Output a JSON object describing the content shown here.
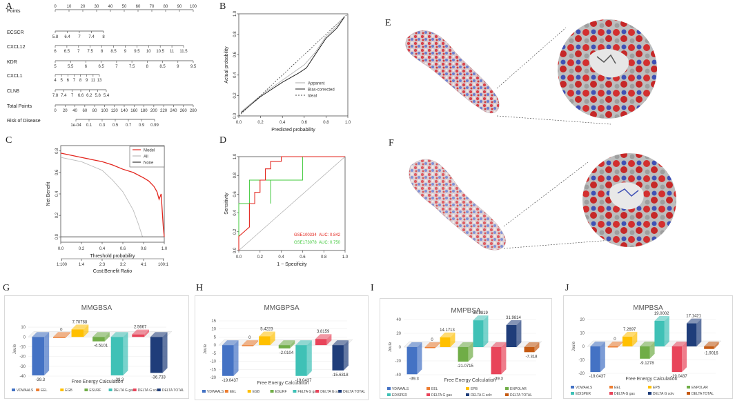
{
  "panels": {
    "A": "A",
    "B": "B",
    "C": "C",
    "D": "D",
    "E": "E",
    "F": "F",
    "G": "G",
    "H": "H",
    "I": "I",
    "J": "J"
  },
  "nomogram": {
    "rows": [
      {
        "label": "Points",
        "ticks": [
          "0",
          "10",
          "20",
          "30",
          "40",
          "50",
          "60",
          "70",
          "80",
          "90",
          "100"
        ],
        "span": [
          0,
          1
        ]
      },
      {
        "label": "ECSCR",
        "ticks": [
          "5.8",
          "6.4",
          "7",
          "7.4",
          "8"
        ],
        "span": [
          0,
          0.35
        ]
      },
      {
        "label": "CXCL12",
        "ticks": [
          "6",
          "6.5",
          "7",
          "7.5",
          "8",
          "8.5",
          "9",
          "9.5",
          "10",
          "10.5",
          "11",
          "11.5"
        ],
        "span": [
          0,
          0.93
        ]
      },
      {
        "label": "KDR",
        "ticks": [
          "5",
          "5.5",
          "6",
          "6.5",
          "7",
          "7.5",
          "8",
          "8.5",
          "9",
          "9.5"
        ],
        "span": [
          0,
          1
        ]
      },
      {
        "label": "CXCL1",
        "ticks": [
          "4",
          "5",
          "6",
          "7",
          "8",
          "9",
          "11",
          "13"
        ],
        "span": [
          0,
          0.32
        ]
      },
      {
        "label": "CLN8",
        "ticks": [
          "7.8",
          "7.4",
          "7",
          "6.6",
          "6.2",
          "5.8",
          "5.4"
        ],
        "span": [
          0,
          0.37
        ]
      },
      {
        "label": "Total Points",
        "ticks": [
          "0",
          "20",
          "40",
          "60",
          "80",
          "100",
          "120",
          "140",
          "160",
          "180",
          "200",
          "220",
          "240",
          "260",
          "280"
        ],
        "span": [
          0,
          1
        ]
      },
      {
        "label": "Risk of Disease",
        "ticks": [
          "1e-04",
          "0.1",
          "0.3",
          "0.5",
          "0.7",
          "0.9",
          "0.99"
        ],
        "span": [
          0.15,
          0.72
        ]
      }
    ]
  },
  "calibration": {
    "type": "line",
    "xlabel": "Predicted probability",
    "ylabel": "Actual probability",
    "x_ticks": [
      "0.0",
      "0.2",
      "0.4",
      "0.6",
      "0.8",
      "1.0"
    ],
    "y_ticks": [
      "0.0",
      "0.2",
      "0.4",
      "0.6",
      "0.8",
      "1.0"
    ],
    "legend": [
      "Apparent",
      "Bias-corrected",
      "Ideal"
    ],
    "series": [
      {
        "name": "Apparent",
        "points": [
          [
            0.02,
            0.04
          ],
          [
            0.2,
            0.2
          ],
          [
            0.4,
            0.35
          ],
          [
            0.6,
            0.5
          ],
          [
            0.7,
            0.62
          ],
          [
            0.8,
            0.78
          ],
          [
            0.9,
            0.88
          ],
          [
            0.97,
            0.98
          ]
        ]
      },
      {
        "name": "Bias-corrected",
        "points": [
          [
            0.02,
            0.03
          ],
          [
            0.2,
            0.19
          ],
          [
            0.4,
            0.33
          ],
          [
            0.55,
            0.42
          ],
          [
            0.62,
            0.47
          ],
          [
            0.7,
            0.6
          ],
          [
            0.8,
            0.76
          ],
          [
            0.9,
            0.86
          ],
          [
            0.97,
            0.97
          ]
        ]
      },
      {
        "name": "Ideal",
        "points": [
          [
            0,
            0
          ],
          [
            1,
            1
          ]
        ]
      }
    ]
  },
  "dca": {
    "type": "line",
    "xlabel": "Threshold probability",
    "ylabel": "Net Benefit",
    "x2label": "Cost:Benefit Ratio",
    "x_ticks": [
      "0.0",
      "0.2",
      "0.4",
      "0.6",
      "0.8",
      "1.0"
    ],
    "y_ticks": [
      "0.0",
      "0.2",
      "0.4",
      "0.6",
      "0.8"
    ],
    "ratio_ticks": [
      "1:100",
      "1:4",
      "2:3",
      "3:2",
      "4:1",
      "100:1"
    ],
    "legend": [
      "Model",
      "All",
      "None"
    ],
    "series": [
      {
        "name": "Model",
        "points": [
          [
            0,
            0.78
          ],
          [
            0.1,
            0.76
          ],
          [
            0.2,
            0.74
          ],
          [
            0.3,
            0.72
          ],
          [
            0.4,
            0.7
          ],
          [
            0.5,
            0.67
          ],
          [
            0.6,
            0.63
          ],
          [
            0.7,
            0.6
          ],
          [
            0.8,
            0.55
          ],
          [
            0.85,
            0.52
          ],
          [
            0.9,
            0.47
          ],
          [
            0.93,
            0.42
          ],
          [
            0.95,
            0.35
          ],
          [
            0.97,
            0.4
          ],
          [
            0.99,
            0.1
          ],
          [
            1.0,
            0.0
          ]
        ]
      },
      {
        "name": "All",
        "points": [
          [
            0,
            0.74
          ],
          [
            0.2,
            0.7
          ],
          [
            0.4,
            0.62
          ],
          [
            0.5,
            0.53
          ],
          [
            0.6,
            0.42
          ],
          [
            0.7,
            0.25
          ],
          [
            0.75,
            0.12
          ],
          [
            0.79,
            0.0
          ]
        ]
      },
      {
        "name": "None",
        "points": [
          [
            0,
            0
          ],
          [
            1,
            0
          ]
        ]
      }
    ]
  },
  "roc": {
    "type": "line",
    "xlabel": "1 − Specificity",
    "ylabel": "Sensitivity",
    "x_ticks": [
      "0.0",
      "0.2",
      "0.4",
      "0.6",
      "0.8",
      "1.0"
    ],
    "y_ticks": [
      "0.0",
      "0.2",
      "0.4",
      "0.6",
      "0.8",
      "1.0"
    ],
    "series": [
      {
        "name": "GSE100334",
        "auc": "AUC: 0.842",
        "color": "#e3261e",
        "points": [
          [
            0,
            0
          ],
          [
            0,
            0.15
          ],
          [
            0.1,
            0.25
          ],
          [
            0.1,
            0.5
          ],
          [
            0.15,
            0.5
          ],
          [
            0.15,
            0.62
          ],
          [
            0.2,
            0.62
          ],
          [
            0.2,
            0.75
          ],
          [
            0.25,
            0.75
          ],
          [
            0.25,
            0.87
          ],
          [
            0.3,
            0.87
          ],
          [
            0.3,
            0.95
          ],
          [
            0.4,
            0.95
          ],
          [
            0.4,
            1.0
          ],
          [
            1.0,
            1.0
          ]
        ]
      },
      {
        "name": "GSE173078",
        "auc": "AUC: 0.750",
        "color": "#3fc83a",
        "points": [
          [
            0,
            0
          ],
          [
            0,
            0.5
          ],
          [
            0.1,
            0.5
          ],
          [
            0.1,
            0.75
          ],
          [
            0.3,
            0.75
          ],
          [
            0.3,
            0.5
          ],
          [
            0.3,
            0.75
          ],
          [
            0.6,
            0.75
          ],
          [
            0.6,
            1.0
          ],
          [
            1.0,
            1.0
          ]
        ]
      }
    ]
  },
  "chart_data": [
    {
      "type": "bar",
      "panel": "G",
      "title": "MMGBSA",
      "xlabel": "Free Energy Calculation",
      "ylabel": "Joule",
      "y_ticks": [
        "10",
        "0",
        "-10",
        "-20",
        "-30",
        "-40"
      ],
      "ylim": [
        -40,
        15
      ],
      "categories": [
        "VDWAALS",
        "EEL",
        "EGB",
        "ESURF",
        "DELTA G gas",
        "DELTA G solv",
        "DELTA TOTAL"
      ],
      "values": [
        -39.3,
        0,
        7.70768,
        -4.5101,
        -39.3,
        2.5667,
        -36.733
      ],
      "labels": [
        "-39.3",
        "0",
        "7.70768",
        "-4.5101",
        "-39.3",
        "2.5667",
        "-36.733"
      ],
      "colors": [
        "#4472c4",
        "#ed7d31",
        "#ffc000",
        "#70ad47",
        "#3fc1b6",
        "#e8445a",
        "#1f3d7a"
      ]
    },
    {
      "type": "bar",
      "panel": "H",
      "title": "MMGBPSA",
      "xlabel": "Free Energy Calculation",
      "ylabel": "Joule",
      "y_ticks": [
        "15",
        "10",
        "5",
        "0",
        "-5",
        "-10",
        "-15",
        "-20"
      ],
      "ylim": [
        -20,
        15
      ],
      "categories": [
        "VDWAALS",
        "EEL",
        "EGB",
        "ESURF",
        "FELTA G gas",
        "DELTA G solv",
        "DELTA TOTAL"
      ],
      "values": [
        -19.0437,
        0,
        5.4223,
        -2.0104,
        -19.0437,
        3.8159,
        -15.6318
      ],
      "labels": [
        "-19.0437",
        "0",
        "5.4223",
        "-2.0104",
        "-19.0437",
        "3.8159",
        "-15.6318"
      ],
      "colors": [
        "#4472c4",
        "#ed7d31",
        "#ffc000",
        "#70ad47",
        "#3fc1b6",
        "#e8445a",
        "#1f3d7a"
      ]
    },
    {
      "type": "bar",
      "panel": "I",
      "title": "MMPBSA",
      "xlabel": "Free Energy Calculation",
      "ylabel": "Joule",
      "y_ticks": [
        "40",
        "20",
        "0",
        "-20",
        "-40"
      ],
      "ylim": [
        -40,
        40
      ],
      "categories": [
        "VDWAALS",
        "EEL",
        "EPB",
        "ENPOLAR",
        "EDISPER",
        "DELTA G gas",
        "DELTA G solv",
        "DELTA TOTAL"
      ],
      "values": [
        -39.3,
        0,
        14.1713,
        -21.0715,
        38.8819,
        -39.3,
        31.9814,
        -7.318
      ],
      "labels": [
        "-39.3",
        "0",
        "14.1713",
        "-21.0715",
        "38.8819",
        "-39.3",
        "31.9814",
        "-7.318"
      ],
      "colors": [
        "#4472c4",
        "#ed7d31",
        "#ffc000",
        "#70ad47",
        "#3fc1b6",
        "#e8445a",
        "#1f3d7a",
        "#c55a11"
      ]
    },
    {
      "type": "bar",
      "panel": "J",
      "title": "MMPBSA",
      "xlabel": "Free Energy Calculation",
      "ylabel": "Joule",
      "y_ticks": [
        "20",
        "10",
        "0",
        "-10",
        "-20"
      ],
      "ylim": [
        -20,
        20
      ],
      "categories": [
        "VDWAALS",
        "EEL",
        "EPB",
        "ENPOLAR",
        "EDISPER",
        "DELTA G gas",
        "DELTA G solv",
        "DELTA TOTAL"
      ],
      "values": [
        -19.0437,
        0,
        7.2697,
        -9.1278,
        19.0002,
        -19.0437,
        17.1421,
        -1.9016
      ],
      "labels": [
        "-19.0437",
        "0",
        "7.2697",
        "-9.1278",
        "19.0002",
        "-19.0437",
        "17.1421",
        "-1.9016"
      ],
      "colors": [
        "#4472c4",
        "#ed7d31",
        "#ffc000",
        "#70ad47",
        "#3fc1b6",
        "#e8445a",
        "#1f3d7a",
        "#c55a11"
      ]
    }
  ]
}
